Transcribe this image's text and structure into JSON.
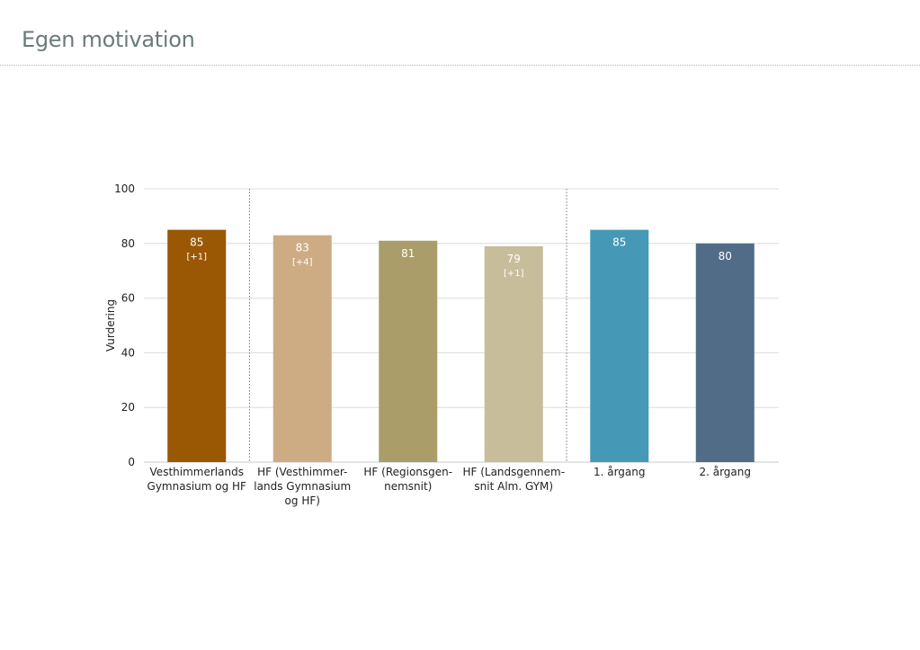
{
  "page": {
    "title": "Egen motivation"
  },
  "chart_data": {
    "type": "bar",
    "title": "",
    "xlabel": "",
    "ylabel": "Vurdering",
    "ylim": [
      0,
      100
    ],
    "yticks": [
      0,
      20,
      40,
      60,
      80,
      100
    ],
    "grid": true,
    "legend": "none",
    "categories": [
      [
        "Vesthimmerlands",
        "Gymnasium og HF"
      ],
      [
        "HF (Vesthimmer-",
        "lands Gymnasium",
        "og HF)"
      ],
      [
        "HF (Regionsgen-",
        "nemsnit)"
      ],
      [
        "HF (Landsgennem-",
        "snit Alm. GYM)"
      ],
      [
        "1. årgang"
      ],
      [
        "2. årgang"
      ]
    ],
    "values": [
      85,
      83,
      81,
      79,
      85,
      80
    ],
    "value_labels": [
      "85",
      "83",
      "81",
      "79",
      "85",
      "80"
    ],
    "change_labels": [
      "[+1]",
      "[+4]",
      "",
      "[+1]",
      "",
      ""
    ],
    "colors": [
      "#9a5704",
      "#ceac83",
      "#aa9d6a",
      "#c7bd9b",
      "#4599b6",
      "#516c87"
    ],
    "group_separators_after": [
      0,
      3
    ]
  }
}
